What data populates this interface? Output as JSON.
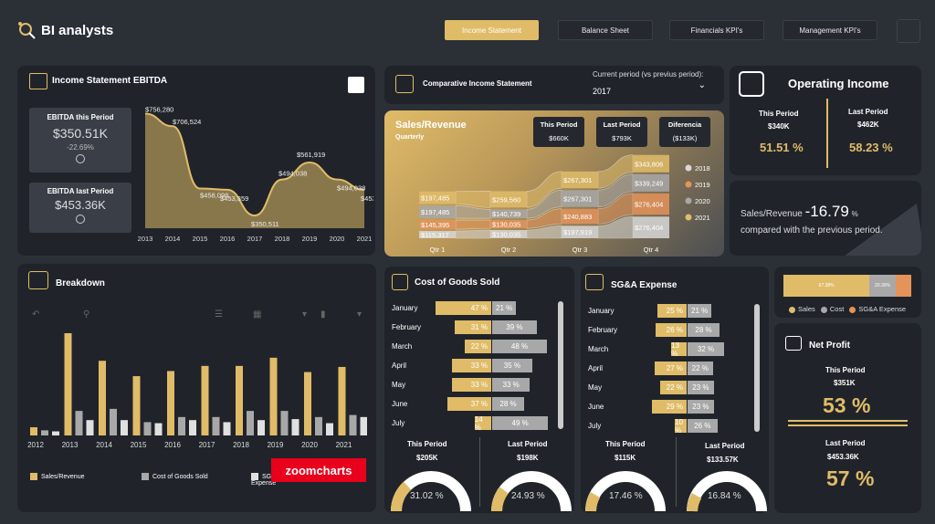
{
  "app": {
    "title": "BI analysts"
  },
  "nav": [
    {
      "label": "Income Statement",
      "active": true
    },
    {
      "label": "Balance Sheet",
      "active": false
    },
    {
      "label": "Financials KPI's",
      "active": false
    },
    {
      "label": "Management KPI's",
      "active": false
    }
  ],
  "colors": {
    "gold": "#e0bc68",
    "grey": "#a8a8a8",
    "orange": "#e4935a",
    "light": "#d8d8d8",
    "bg": "#2b2f36",
    "card": "#20242a"
  },
  "ebitda": {
    "title": "Income Statement EBITDA",
    "this_label": "EBITDA this Period",
    "this_value": "$350.51K",
    "this_change": "-22.69%",
    "last_label": "EBITDA last Period",
    "last_value": "$453.36K"
  },
  "comparative": {
    "title": "Comparative Income Statement",
    "period_label": "Current period (vs previus period):",
    "period_value": "2017"
  },
  "sales": {
    "title": "Sales/Revenue",
    "subtitle": "Quarterly",
    "this_label": "This Period",
    "this_value": "$660K",
    "last_label": "Last Period",
    "last_value": "$793K",
    "diff_label": "Diferencia",
    "diff_value": "($133K)"
  },
  "operating": {
    "title": "Operating Income",
    "this_label": "This Period",
    "this_value": "$340K",
    "this_pct": "51.51 %",
    "last_label": "Last Period",
    "last_value": "$462K",
    "last_pct": "58.23 %"
  },
  "compare_text": {
    "prefix": "Sales/Revenue",
    "value": "-16.79",
    "unit": "%",
    "suffix": "compared with the previous period."
  },
  "breakdown": {
    "title": "Breakdown",
    "logo": "zoomcharts"
  },
  "cogs": {
    "title": "Cost of Goods Sold",
    "this_label": "This Period",
    "this_value": "$205K",
    "this_pct": "31.02 %",
    "last_label": "Last Period",
    "last_value": "$198K",
    "last_pct": "24.93 %",
    "rows": [
      {
        "month": "January",
        "a": "47 %",
        "b": "21 %"
      },
      {
        "month": "February",
        "a": "31 %",
        "b": "39 %"
      },
      {
        "month": "March",
        "a": "22 %",
        "b": "48 %"
      },
      {
        "month": "April",
        "a": "33 %",
        "b": "35 %"
      },
      {
        "month": "May",
        "a": "33 %",
        "b": "33 %"
      },
      {
        "month": "June",
        "a": "37 %",
        "b": "28 %"
      },
      {
        "month": "July",
        "a": "14 %",
        "b": "49 %"
      }
    ]
  },
  "sga": {
    "title": "SG&A Expense",
    "this_label": "This Period",
    "this_value": "$115K",
    "this_pct": "17.46 %",
    "last_label": "Last Period",
    "last_value": "$133.57K",
    "last_pct": "16.84 %",
    "rows": [
      {
        "month": "January",
        "a": "25 %",
        "b": "21 %"
      },
      {
        "month": "February",
        "a": "26 %",
        "b": "28 %"
      },
      {
        "month": "March",
        "a": "13 %",
        "b": "32 %"
      },
      {
        "month": "April",
        "a": "27 %",
        "b": "22 %"
      },
      {
        "month": "May",
        "a": "22 %",
        "b": "23 %"
      },
      {
        "month": "June",
        "a": "29 %",
        "b": "23 %"
      },
      {
        "month": "July",
        "a": "10 %",
        "b": "26 %"
      }
    ]
  },
  "mix": {
    "sales_pct": "67.38%",
    "cost_pct": "20.30%",
    "legend": [
      "Sales",
      "Cost",
      "SG&A Expense"
    ]
  },
  "net_profit": {
    "title": "Net Profit",
    "this_label": "This Period",
    "this_value": "$351K",
    "this_pct": "53 %",
    "last_label": "Last Period",
    "last_value": "$453.36K",
    "last_pct": "57 %"
  },
  "chart_data": [
    {
      "type": "area",
      "x": [
        "2013",
        "2014",
        "2015",
        "2016",
        "2017",
        "2018",
        "2019",
        "2020",
        "2021"
      ],
      "values": [
        756280,
        706524,
        458098,
        453359,
        350511,
        494038,
        561919,
        494038,
        453359
      ],
      "labels": [
        "$756,280",
        "$706,524",
        "$458,098",
        "$453,359",
        "$350,511",
        "$494,038",
        "$561,919",
        "$494,038",
        "$453,359"
      ]
    },
    {
      "type": "line",
      "categories": [
        "Qtr 1",
        "Qtr 2",
        "Qtr 3",
        "Qtr 4"
      ],
      "series": [
        {
          "name": "2018",
          "values": [
            115317,
            130035,
            197919,
            343806
          ]
        },
        {
          "name": "2019",
          "values": [
            145395,
            130035,
            240883,
            339249
          ]
        },
        {
          "name": "2020",
          "values": [
            197485,
            140739,
            267301,
            276404
          ]
        },
        {
          "name": "2021",
          "values": [
            197485,
            259560,
            267301,
            276404
          ]
        }
      ],
      "labels": [
        "$197,485",
        "$197,485",
        "$145,395",
        "$115,317",
        "$259,560",
        "$140,739",
        "$130,035",
        "$130,035",
        "$267,301",
        "$267,301",
        "$240,883",
        "$197,919",
        "$343,806",
        "$339,249",
        "$276,404",
        "$276,404"
      ]
    },
    {
      "type": "bar",
      "categories": [
        "2012",
        "2013",
        "2014",
        "2015",
        "2016",
        "2017",
        "2018",
        "2019",
        "2020",
        "2021"
      ],
      "series": [
        {
          "name": "Sales/Revenue",
          "values": [
            8,
            100,
            73,
            58,
            63,
            68,
            68,
            76,
            62,
            67
          ]
        },
        {
          "name": "Cost of Goods Sold",
          "values": [
            5,
            24,
            26,
            13,
            18,
            18,
            24,
            24,
            18,
            20
          ]
        },
        {
          "name": "SG&A Expense",
          "values": [
            4,
            15,
            15,
            12,
            15,
            13,
            15,
            16,
            12,
            18
          ]
        }
      ]
    }
  ]
}
